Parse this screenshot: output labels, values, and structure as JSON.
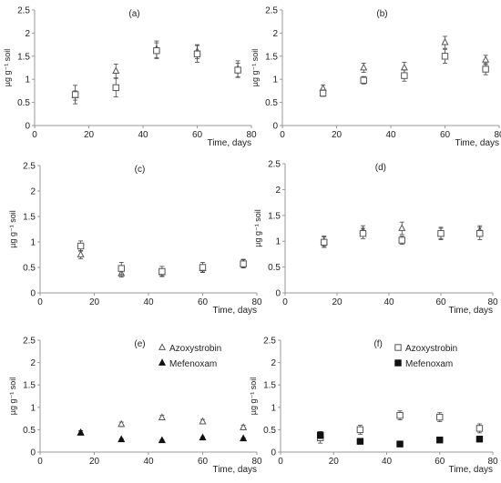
{
  "chart_data": [
    {
      "panel_label": "(a)",
      "type": "scatter",
      "ylabel": "µg g⁻¹ soil",
      "xlabel": "Time, days",
      "xlim": [
        0,
        80
      ],
      "ylim": [
        0,
        2.5
      ],
      "xticks": [
        "0",
        "20",
        "40",
        "60",
        "80"
      ],
      "yticks": [
        "0",
        "0.5",
        "1",
        "1.5",
        "2",
        "2.5"
      ],
      "legend": false,
      "series": [
        {
          "marker": "open-triangle",
          "x": [
            15,
            30,
            45,
            60,
            75
          ],
          "y": [
            0.65,
            1.18,
            1.65,
            1.6,
            1.22
          ],
          "err": [
            0.1,
            0.15,
            0.18,
            0.15,
            0.18
          ]
        },
        {
          "marker": "open-square",
          "x": [
            15,
            30,
            45,
            60,
            75
          ],
          "y": [
            0.67,
            0.82,
            1.62,
            1.55,
            1.2
          ],
          "err": [
            0.2,
            0.2,
            0.17,
            0.18,
            0.15
          ]
        }
      ]
    },
    {
      "panel_label": "(b)",
      "type": "scatter",
      "ylabel": "µg g⁻¹ soil",
      "xlabel": "Time, days",
      "xlim": [
        0,
        80
      ],
      "ylim": [
        0,
        2.5
      ],
      "xticks": [
        "0",
        "20",
        "40",
        "60",
        "80"
      ],
      "yticks": [
        "0",
        "0.5",
        "1",
        "1.5",
        "2",
        "2.5"
      ],
      "legend": false,
      "series": [
        {
          "marker": "open-triangle",
          "x": [
            15,
            30,
            45,
            60,
            75
          ],
          "y": [
            0.8,
            1.25,
            1.25,
            1.8,
            1.42
          ],
          "err": [
            0.08,
            0.1,
            0.12,
            0.13,
            0.1
          ]
        },
        {
          "marker": "open-square",
          "x": [
            15,
            30,
            45,
            60,
            75
          ],
          "y": [
            0.7,
            0.98,
            1.08,
            1.5,
            1.22
          ],
          "err": [
            0.07,
            0.08,
            0.12,
            0.15,
            0.12
          ]
        }
      ]
    },
    {
      "panel_label": "(c)",
      "type": "scatter",
      "ylabel": "µg g⁻¹ soil",
      "xlabel": "Time, days",
      "xlim": [
        0,
        80
      ],
      "ylim": [
        0,
        2.5
      ],
      "xticks": [
        "0",
        "20",
        "40",
        "60",
        "80"
      ],
      "yticks": [
        "0",
        "0.5",
        "1",
        "1.5",
        "2",
        "2.5"
      ],
      "legend": false,
      "series": [
        {
          "marker": "open-triangle",
          "x": [
            15,
            30,
            45,
            60,
            75
          ],
          "y": [
            0.75,
            0.38,
            0.4,
            0.48,
            0.58
          ],
          "err": [
            0.08,
            0.07,
            0.07,
            0.07,
            0.08
          ]
        },
        {
          "marker": "open-square",
          "x": [
            15,
            30,
            45,
            60,
            75
          ],
          "y": [
            0.92,
            0.48,
            0.42,
            0.5,
            0.57
          ],
          "err": [
            0.1,
            0.12,
            0.1,
            0.1,
            0.08
          ]
        }
      ]
    },
    {
      "panel_label": "(d)",
      "type": "scatter",
      "ylabel": "µg g⁻¹ soil",
      "xlabel": "Time, days",
      "xlim": [
        0,
        80
      ],
      "ylim": [
        0,
        2.5
      ],
      "xticks": [
        "0",
        "20",
        "40",
        "60",
        "80"
      ],
      "yticks": [
        "0",
        "0.5",
        "1",
        "1.5",
        "2",
        "2.5"
      ],
      "legend": false,
      "series": [
        {
          "marker": "open-triangle",
          "x": [
            15,
            30,
            45,
            60,
            75
          ],
          "y": [
            1.0,
            1.2,
            1.25,
            1.15,
            1.2
          ],
          "err": [
            0.1,
            0.1,
            0.12,
            0.1,
            0.1
          ]
        },
        {
          "marker": "open-square",
          "x": [
            15,
            30,
            45,
            60,
            75
          ],
          "y": [
            0.98,
            1.15,
            1.02,
            1.15,
            1.15
          ],
          "err": [
            0.1,
            0.1,
            0.08,
            0.12,
            0.12
          ]
        }
      ]
    },
    {
      "panel_label": "(e)",
      "type": "scatter",
      "ylabel": "µg g⁻¹ soil",
      "xlabel": "Time, days",
      "xlim": [
        0,
        80
      ],
      "ylim": [
        0,
        2.5
      ],
      "xticks": [
        "0",
        "20",
        "40",
        "60",
        "80"
      ],
      "yticks": [
        "0",
        "0.5",
        "1",
        "1.5",
        "2",
        "2.5"
      ],
      "legend": true,
      "legend_position": "top-right",
      "series": [
        {
          "name": "Azoxystrobin",
          "marker": "open-triangle",
          "x": [
            15,
            30,
            45,
            60,
            75
          ],
          "y": [
            0.43,
            0.62,
            0.77,
            0.68,
            0.55
          ],
          "err": [
            0.05,
            0.05,
            0.05,
            0.05,
            0.05
          ]
        },
        {
          "name": "Mefenoxam",
          "marker": "filled-triangle",
          "x": [
            15,
            30,
            45,
            60,
            75
          ],
          "y": [
            0.43,
            0.28,
            0.26,
            0.32,
            0.3
          ],
          "err": [
            0.04,
            0.02,
            0.02,
            0.02,
            0.02
          ]
        }
      ]
    },
    {
      "panel_label": "(f)",
      "type": "scatter",
      "ylabel": "µg g⁻¹ soil",
      "xlabel": "Time, days",
      "xlim": [
        0,
        80
      ],
      "ylim": [
        0,
        2.5
      ],
      "xticks": [
        "0",
        "20",
        "40",
        "60",
        "80"
      ],
      "yticks": [
        "0",
        "0.5",
        "1",
        "1.5",
        "2",
        "2.5"
      ],
      "legend": true,
      "legend_position": "top-right",
      "series": [
        {
          "name": "Azoxystrobin",
          "marker": "open-square",
          "x": [
            15,
            30,
            45,
            60,
            75
          ],
          "y": [
            0.32,
            0.5,
            0.82,
            0.78,
            0.53
          ],
          "err": [
            0.12,
            0.1,
            0.1,
            0.1,
            0.1
          ]
        },
        {
          "name": "Mefenoxam",
          "marker": "filled-square",
          "x": [
            15,
            30,
            45,
            60,
            75
          ],
          "y": [
            0.38,
            0.24,
            0.18,
            0.27,
            0.29
          ],
          "err": [
            0.08,
            0.05,
            0.02,
            0.06,
            0.06
          ]
        }
      ]
    }
  ]
}
